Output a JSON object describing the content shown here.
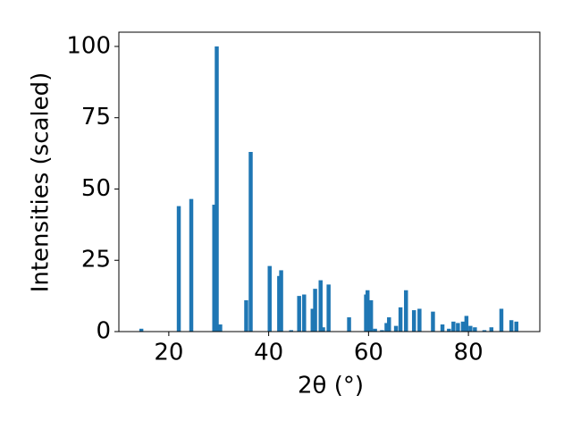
{
  "chart_data": {
    "type": "bar",
    "x_label": "2θ (°)",
    "y_label": "Intensities (scaled)",
    "color": "#1f77b4",
    "x": [
      14.5,
      22,
      24.5,
      29.1,
      29.6,
      30.3,
      35.5,
      36.4,
      40.2,
      42.1,
      42.5,
      44.5,
      46.1,
      47.1,
      48.8,
      49.3,
      50.4,
      50.9,
      52,
      56.1,
      59.5,
      59.8,
      60.5,
      61.3,
      62.7,
      63.6,
      64.1,
      65.5,
      66.4,
      67.5,
      69.1,
      70.2,
      72.9,
      74.8,
      76.1,
      77,
      77.9,
      78.9,
      79.6,
      80.4,
      81.3,
      83.2,
      84.6,
      86.6,
      88.6,
      89.6
    ],
    "values": [
      1,
      44,
      46.5,
      44.5,
      100,
      2.5,
      11,
      63,
      23,
      19.5,
      21.5,
      0.5,
      12.5,
      13,
      8,
      15,
      18,
      1.5,
      16.5,
      5,
      13,
      14.5,
      11,
      1,
      0.5,
      3,
      5,
      2,
      8.5,
      14.5,
      7.5,
      8,
      7,
      2.5,
      1,
      3.5,
      3,
      3.5,
      5.5,
      2,
      1.5,
      0.5,
      1.5,
      8,
      4,
      3.5
    ],
    "xlim": [
      10,
      94.3
    ],
    "ylim": [
      0,
      105
    ],
    "xticks": [
      20,
      40,
      60,
      80
    ],
    "yticks": [
      0,
      25,
      50,
      75,
      100
    ]
  }
}
